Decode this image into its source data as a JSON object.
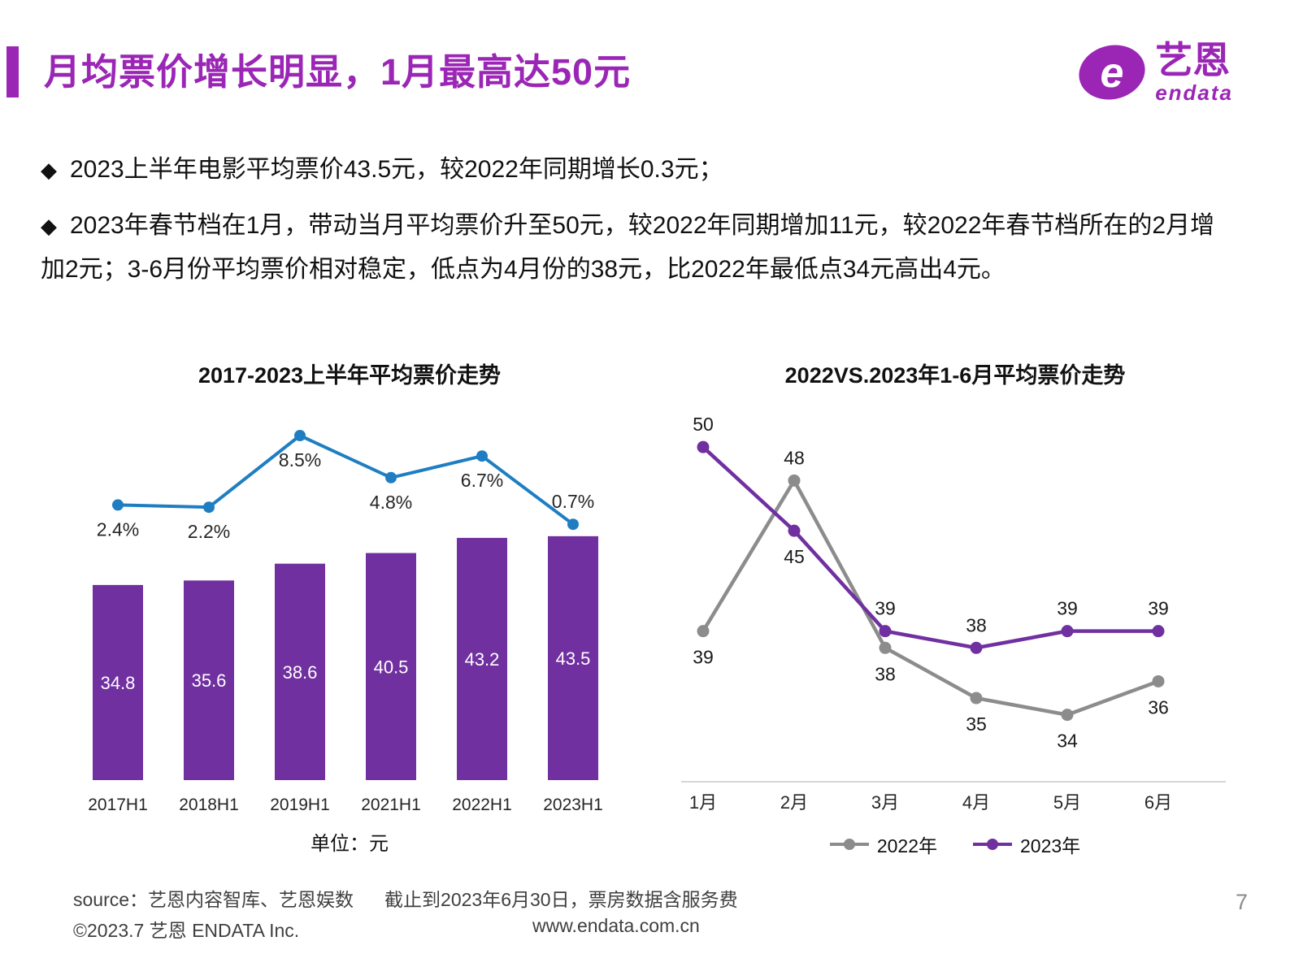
{
  "header": {
    "title": "月均票价增长明显，1月最高达50元",
    "title_color": "#9B26B6",
    "logo": {
      "brand_cn": "艺恩",
      "brand_en": "endata"
    }
  },
  "bullets": {
    "marker": "◆",
    "items": [
      "2023上半年电影平均票价43.5元，较2022年同期增长0.3元；",
      "2023年春节档在1月，带动当月平均票价升至50元，较2022年同期增加11元，较2022年春节档所在的2月增加2元；3-6月份平均票价相对稳定，低点为4月份的38元，比2022年最低点34元高出4元。"
    ]
  },
  "chart_data": [
    {
      "type": "bar",
      "title": "2017-2023上半年平均票价走势",
      "categories": [
        "2017H1",
        "2018H1",
        "2019H1",
        "2021H1",
        "2022H1",
        "2023H1"
      ],
      "series": [
        {
          "chart": "bar",
          "values": [
            34.8,
            35.6,
            38.6,
            40.5,
            43.2,
            43.5
          ],
          "value_labels": [
            "34.8",
            "35.6",
            "38.6",
            "40.5",
            "43.2",
            "43.5"
          ],
          "color": "#7030A0",
          "ylim": [
            0,
            50
          ]
        },
        {
          "chart": "line",
          "values": [
            2.4,
            2.2,
            8.5,
            4.8,
            6.7,
            0.7
          ],
          "labels": [
            "2.4%",
            "2.2%",
            "8.5%",
            "4.8%",
            "6.7%",
            "0.7%"
          ],
          "color": "#1F7EC2",
          "ylim": [
            0,
            10
          ],
          "label_side": [
            "below",
            "below",
            "below",
            "below",
            "below",
            "above"
          ]
        }
      ],
      "footnote": "单位：元",
      "grid": false
    },
    {
      "type": "line",
      "title": "2022VS.2023年1-6月平均票价走势",
      "categories": [
        "1月",
        "2月",
        "3月",
        "4月",
        "5月",
        "6月"
      ],
      "series": [
        {
          "name": "2022年",
          "values": [
            39,
            48,
            38,
            35,
            34,
            36
          ],
          "color": "#8C8C8C",
          "label_side": [
            "below",
            "above",
            "below",
            "below",
            "below",
            "below"
          ]
        },
        {
          "name": "2023年",
          "values": [
            50,
            45,
            39,
            38,
            39,
            39
          ],
          "color": "#7030A0",
          "label_side": [
            "above",
            "below",
            "above",
            "above",
            "above",
            "above"
          ]
        }
      ],
      "ylim": [
        30,
        52
      ],
      "legend_position": "bottom",
      "grid": false
    }
  ],
  "footer": {
    "source_left": "source：艺恩内容智库、艺恩娱数",
    "source_right": "截止到2023年6月30日，票房数据含服务费",
    "copyright": "©2023.7 艺恩 ENDATA Inc.",
    "website": "www.endata.com.cn",
    "page_number": "7"
  }
}
